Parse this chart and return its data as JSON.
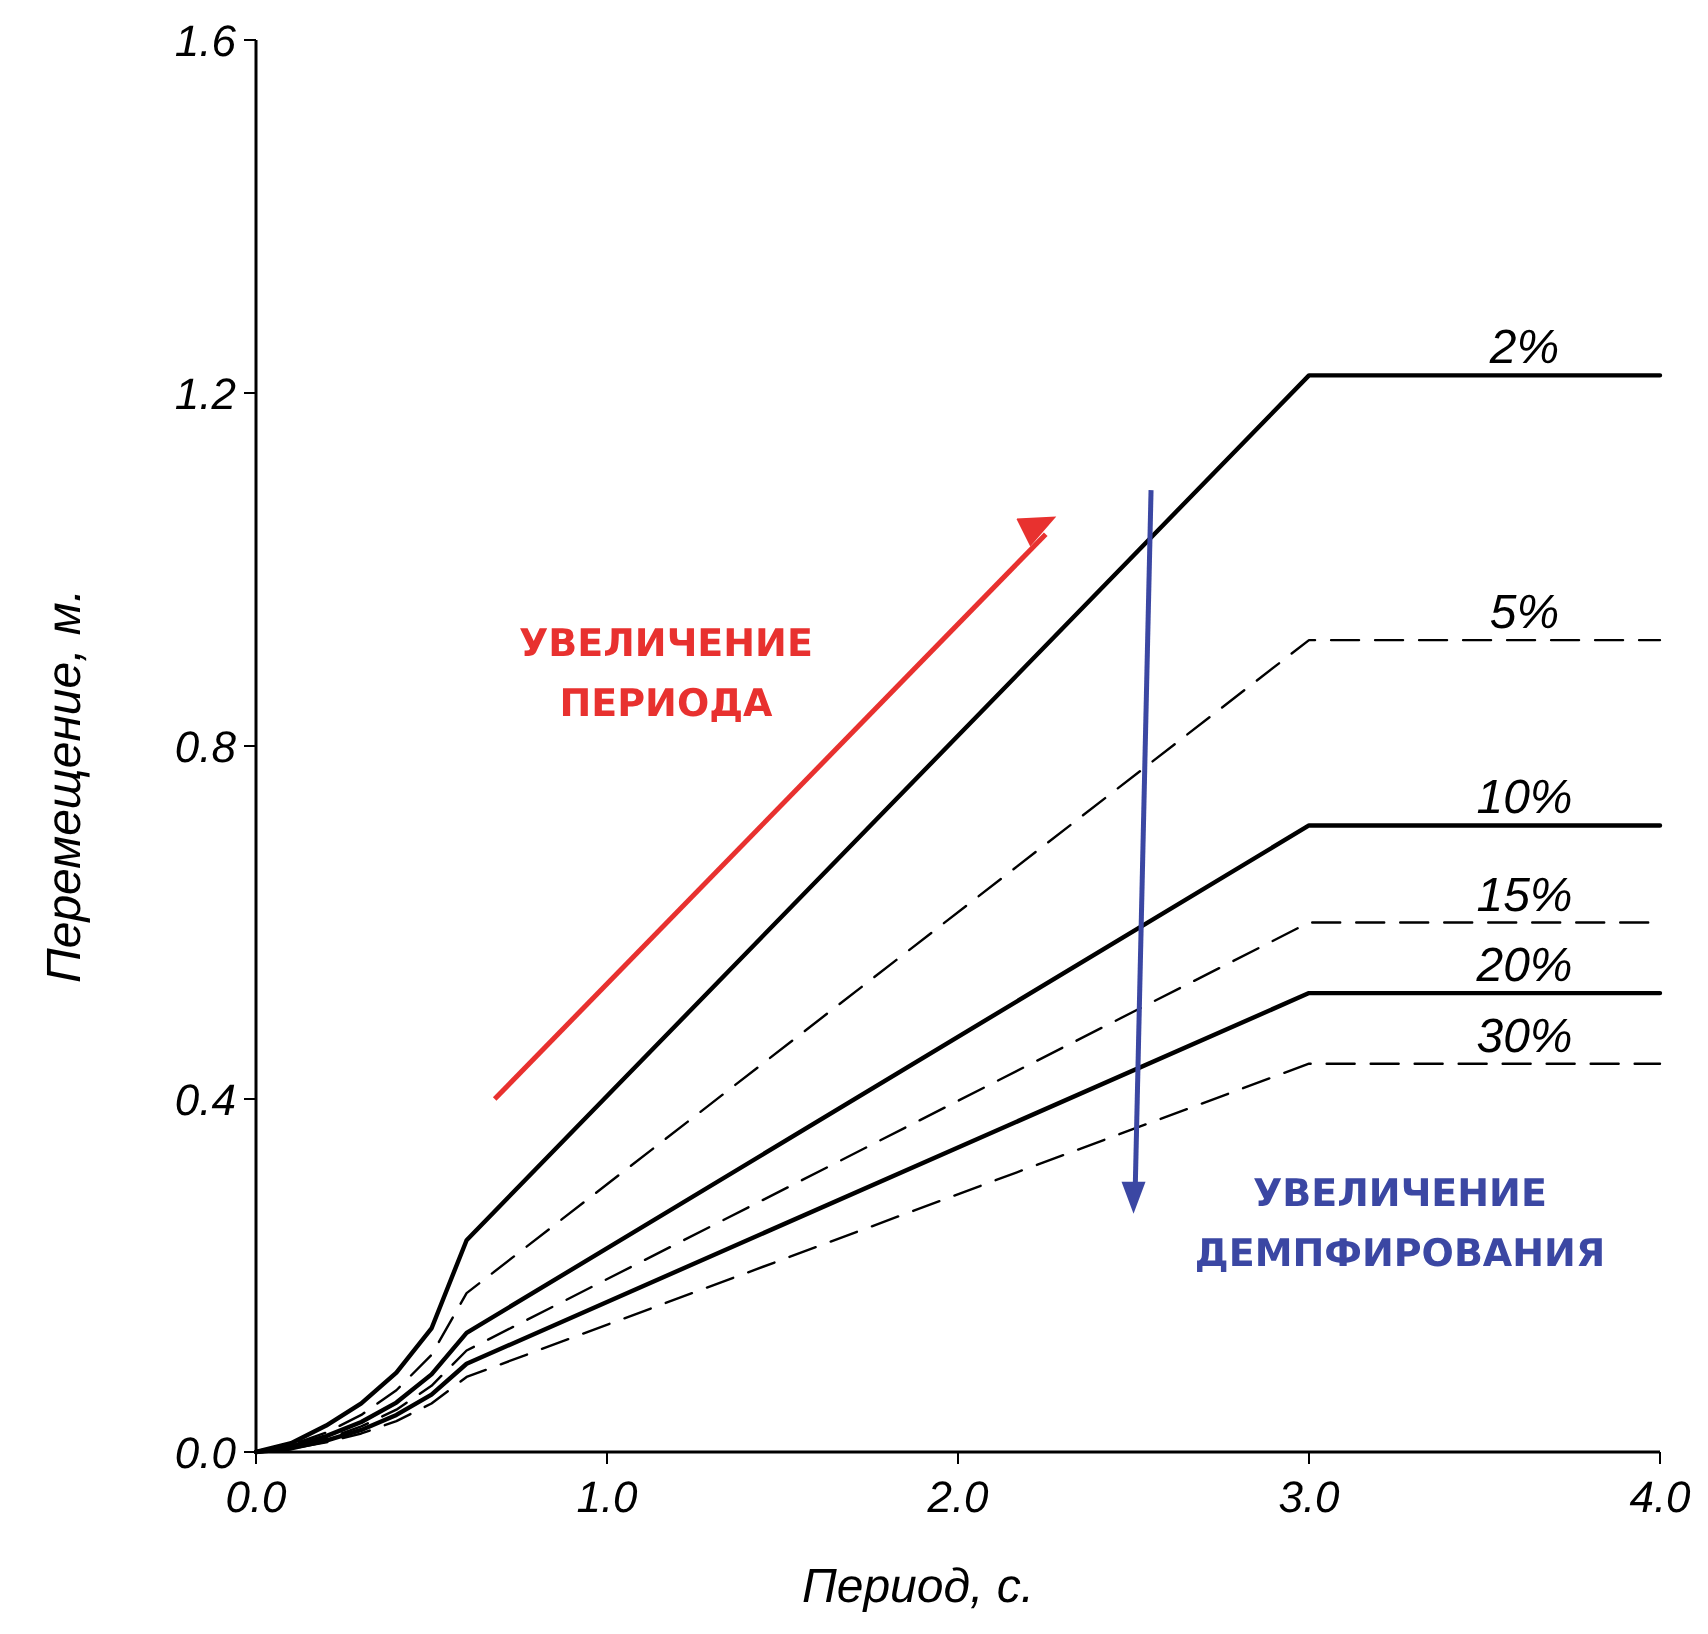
{
  "chart_data": {
    "type": "line",
    "xlabel": "Период, с.",
    "ylabel": "Перемещение, м.",
    "x": [
      0,
      0.1,
      0.2,
      0.3,
      0.4,
      0.5,
      0.6,
      3.0,
      4.0
    ],
    "series": [
      {
        "name": "2%",
        "color": "#000000",
        "line_style": "solid",
        "values": [
          0,
          0.01,
          0.03,
          0.055,
          0.09,
          0.14,
          0.24,
          1.22,
          1.22
        ]
      },
      {
        "name": "5%",
        "color": "#000000",
        "line_style": "dashed",
        "values": [
          0,
          0.008,
          0.022,
          0.042,
          0.07,
          0.11,
          0.18,
          0.92,
          0.92
        ]
      },
      {
        "name": "10%",
        "color": "#000000",
        "line_style": "solid",
        "values": [
          0,
          0.006,
          0.018,
          0.034,
          0.056,
          0.088,
          0.135,
          0.71,
          0.71
        ]
      },
      {
        "name": "15%",
        "color": "#000000",
        "line_style": "dashed",
        "values": [
          0,
          0.005,
          0.015,
          0.029,
          0.048,
          0.075,
          0.115,
          0.6,
          0.6
        ]
      },
      {
        "name": "20%",
        "color": "#000000",
        "line_style": "solid",
        "values": [
          0,
          0.004,
          0.013,
          0.025,
          0.042,
          0.065,
          0.1,
          0.52,
          0.52
        ]
      },
      {
        "name": "30%",
        "color": "#000000",
        "line_style": "dashed",
        "values": [
          0,
          0.004,
          0.011,
          0.021,
          0.035,
          0.055,
          0.085,
          0.44,
          0.44
        ]
      }
    ],
    "xlim": [
      0,
      4
    ],
    "xticks": [
      {
        "value": 0,
        "label": "0.0"
      },
      {
        "value": 1,
        "label": "1.0"
      },
      {
        "value": 2,
        "label": "2.0"
      },
      {
        "value": 3,
        "label": "3.0"
      },
      {
        "value": 4,
        "label": "4.0"
      }
    ],
    "ylim": [
      0,
      1.6
    ],
    "yticks": [
      {
        "value": 0,
        "label": "0.0"
      },
      {
        "value": 0.4,
        "label": "0.4"
      },
      {
        "value": 0.8,
        "label": "0.8"
      },
      {
        "value": 1.2,
        "label": "1.2"
      },
      {
        "value": 1.6,
        "label": "1.6"
      }
    ],
    "grid": false,
    "marker": "none",
    "annotations": [
      "УВЕЛИЧЕНИЕ ПЕРИОДА",
      "УВЕЛИЧЕНИЕ ДЕМПФИРОВАНИЯ"
    ]
  }
}
